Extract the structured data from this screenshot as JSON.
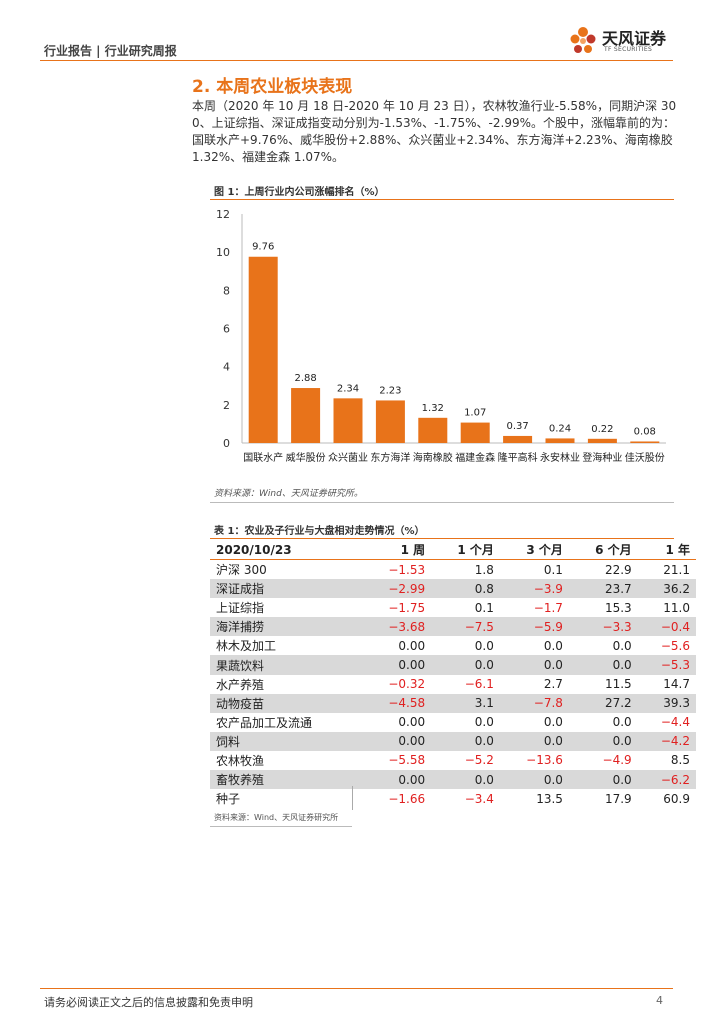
{
  "header": {
    "text": "行业报告 | 行业研究周报"
  },
  "logo": {
    "cn": "天风证券",
    "en": "TF SECURITIES",
    "color": "#e8731a"
  },
  "section": {
    "title": "2. 本周农业板块表现"
  },
  "paragraph": "本周（2020 年 10 月 18 日-2020 年 10 月 23 日），农林牧渔行业-5.58%，同期沪深 300、上证综指、深证成指变动分别为-1.53%、-1.75%、-2.99%。个股中，涨幅靠前的为：国联水产+9.76%、威华股份+2.88%、众兴菌业+2.34%、东方海洋+2.23%、海南橡胶 1.32%、福建金森 1.07%。",
  "figure": {
    "title": "图 1：上周行业内公司涨幅排名（%）",
    "source": "资料来源：Wind、天风证券研究所。"
  },
  "chart_data": {
    "type": "bar",
    "title": "图 1：上周行业内公司涨幅排名（%）",
    "categories": [
      "国联水产",
      "威华股份",
      "众兴菌业",
      "东方海洋",
      "海南橡胶",
      "福建金森",
      "隆平高科",
      "永安林业",
      "登海种业",
      "佳沃股份"
    ],
    "values": [
      9.76,
      2.88,
      2.34,
      2.23,
      1.32,
      1.07,
      0.37,
      0.24,
      0.22,
      0.08
    ],
    "value_labels": [
      "9.76",
      "2.88",
      "2.34",
      "2.23",
      "1.32",
      "1.07",
      "0.37",
      "0.24",
      "0.22",
      "0.08"
    ],
    "ylim": [
      0,
      12
    ],
    "yticks": [
      "0",
      "2",
      "4",
      "6",
      "8",
      "10",
      "12"
    ],
    "xlabel": "",
    "ylabel": "",
    "bar_color": "#e8731a",
    "grid": false
  },
  "table": {
    "title": "表 1：农业及子行业与大盘相对走势情况（%）",
    "headers": [
      "2020/10/23",
      "1 周",
      "1 个月",
      "3 个月",
      "6 个月",
      "1 年"
    ],
    "rows": [
      {
        "name": "沪深 300",
        "cells": [
          "−1.53",
          "1.8",
          "0.1",
          "22.9",
          "21.1"
        ]
      },
      {
        "name": "深证成指",
        "cells": [
          "−2.99",
          "0.8",
          "−3.9",
          "23.7",
          "36.2"
        ]
      },
      {
        "name": "上证综指",
        "cells": [
          "−1.75",
          "0.1",
          "−1.7",
          "15.3",
          "11.0"
        ]
      },
      {
        "name": "海洋捕捞",
        "cells": [
          "−3.68",
          "−7.5",
          "−5.9",
          "−3.3",
          "−0.4"
        ]
      },
      {
        "name": "林木及加工",
        "cells": [
          "0.00",
          "0.0",
          "0.0",
          "0.0",
          "−5.6"
        ]
      },
      {
        "name": "果蔬饮料",
        "cells": [
          "0.00",
          "0.0",
          "0.0",
          "0.0",
          "−5.3"
        ]
      },
      {
        "name": "水产养殖",
        "cells": [
          "−0.32",
          "−6.1",
          "2.7",
          "11.5",
          "14.7"
        ]
      },
      {
        "name": "动物疫苗",
        "cells": [
          "−4.58",
          "3.1",
          "−7.8",
          "27.2",
          "39.3"
        ]
      },
      {
        "name": "农产品加工及流通",
        "cells": [
          "0.00",
          "0.0",
          "0.0",
          "0.0",
          "−4.4"
        ]
      },
      {
        "name": "饲料",
        "cells": [
          "0.00",
          "0.0",
          "0.0",
          "0.0",
          "−4.2"
        ]
      },
      {
        "name": "农林牧渔",
        "cells": [
          "−5.58",
          "−5.2",
          "−13.6",
          "−4.9",
          "8.5"
        ]
      },
      {
        "name": "畜牧养殖",
        "cells": [
          "0.00",
          "0.0",
          "0.0",
          "0.0",
          "−6.2"
        ]
      },
      {
        "name": "种子",
        "cells": [
          "−1.66",
          "−3.4",
          "13.5",
          "17.9",
          "60.9"
        ]
      }
    ],
    "source": "资料来源：Wind、天风证券研究所",
    "negative_color": "#e02020",
    "shade_color": "#d9d9d9"
  },
  "footer": {
    "disclaimer": "请务必阅读正文之后的信息披露和免责申明",
    "page": "4"
  }
}
